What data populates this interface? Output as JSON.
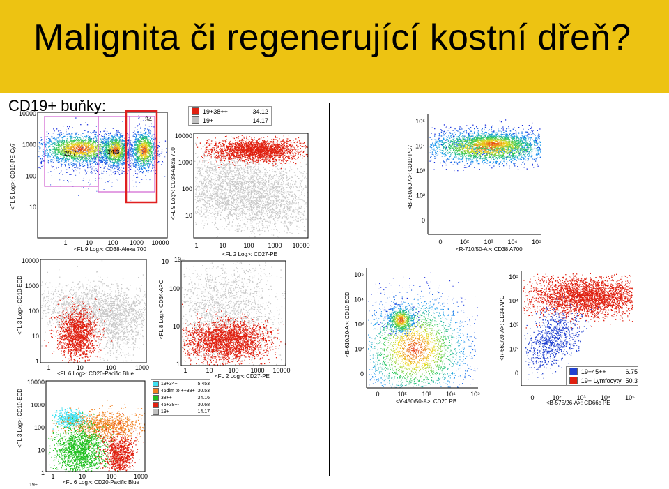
{
  "slide": {
    "title": "Malignita či regenerující kostní dřeň?",
    "subtitle": "CD19+ buňky:",
    "title_bg_color": "#f1c40f",
    "highlight_color": "#e02020",
    "gate_color": "#d060d0"
  },
  "plot_a": {
    "xlabel": "<FL 9 Log>: CD38-Alexa 700",
    "ylabel": "<FL 5 Log>: CD19-PE-Cy7",
    "xticks": [
      "1",
      "10",
      "100",
      "1000",
      "10000"
    ],
    "yticks": [
      "10000",
      "1000",
      "100",
      "10"
    ],
    "gate_labels": [
      "28.7",
      "34.3",
      "34."
    ]
  },
  "plot_b": {
    "xlabel": "<FL 2 Log>: CD27-PE",
    "ylabel": "<FL 9 Log>: CD38-Alexa 700",
    "xticks": [
      "1",
      "10",
      "100",
      "1000",
      "10000"
    ],
    "yticks": [
      "10000",
      "1000",
      "100",
      "10"
    ]
  },
  "legend_b": {
    "rows": [
      {
        "name": "19+38++",
        "value": "34.12",
        "color": "#e02010"
      },
      {
        "name": "19+",
        "value": "14.17",
        "color": "#c0c0c0"
      }
    ]
  },
  "plot_c": {
    "xlabel": "<R-710/50-A>: CD38 A700",
    "ylabel": "<B-780/60-A>: CD19 PC7",
    "xticks": [
      "0",
      "10²",
      "10³",
      "10⁴",
      "10⁵"
    ],
    "yticks": [
      "10⁵",
      "10⁴",
      "10³",
      "10²",
      "0"
    ]
  },
  "plot_d": {
    "xlabel": "<FL 6 Log>: CD20-Pacific Blue",
    "ylabel": "<FL 3 Log>: CD10-ECD",
    "xticks": [
      "1",
      "10",
      "100",
      "1000"
    ],
    "yticks": [
      "10000",
      "1000",
      "100",
      "10",
      "1"
    ]
  },
  "plot_e": {
    "xlabel": "<FL 2 Log>: CD27-PE",
    "ylabel": "<FL 8 Log>: CD34-APC",
    "xticks": [
      "1",
      "10",
      "100",
      "1000",
      "10000"
    ],
    "yticks": [
      "100",
      "10",
      "1"
    ],
    "top_label": "19+",
    "side_label": "10"
  },
  "legend_e": {
    "rows": [
      {
        "name": "19+34+",
        "value": "5.453",
        "color": "#40e0f0"
      },
      {
        "name": "45dim to ++38+",
        "value": "30.53",
        "color": "#f08020"
      },
      {
        "name": "38++",
        "value": "34.16",
        "color": "#20c020"
      },
      {
        "name": "45+38+-",
        "value": "30.68",
        "color": "#e02010"
      },
      {
        "name": "19+",
        "value": "14.17",
        "color": "#c0c0c0"
      }
    ]
  },
  "plot_f": {
    "xlabel": "<FL 6 Log>: CD20-Pacific Blue",
    "ylabel": "<FL 3 Log>: CD10-ECD",
    "xticks": [
      "1",
      "10",
      "100",
      "1000"
    ],
    "yticks": [
      "10000",
      "1000",
      "100",
      "10",
      "1"
    ]
  },
  "plot_g": {
    "xlabel": "<V-450/50-A>: CD20 PB",
    "ylabel": "<B-610/20-A>: CD10 ECD",
    "xticks": [
      "0",
      "10²",
      "10³",
      "10⁴",
      "10⁵"
    ],
    "yticks": [
      "10⁵",
      "10⁴",
      "10³",
      "10²",
      "0"
    ]
  },
  "plot_h": {
    "xlabel": "<B-575/26-A>: CD66c PE",
    "ylabel": "<R-660/20-A>: CD34 APC",
    "xticks": [
      "0",
      "10²",
      "10³",
      "10⁴",
      "10⁵"
    ],
    "yticks": [
      "10⁵",
      "10⁴",
      "10³",
      "10²",
      "0"
    ]
  },
  "legend_h": {
    "rows": [
      {
        "name": "19+45++",
        "value": "6.75",
        "color": "#2040d0"
      },
      {
        "name": "19+ Lymfocyty",
        "value": "50.3",
        "color": "#e02010"
      }
    ]
  },
  "footnote": "19+"
}
